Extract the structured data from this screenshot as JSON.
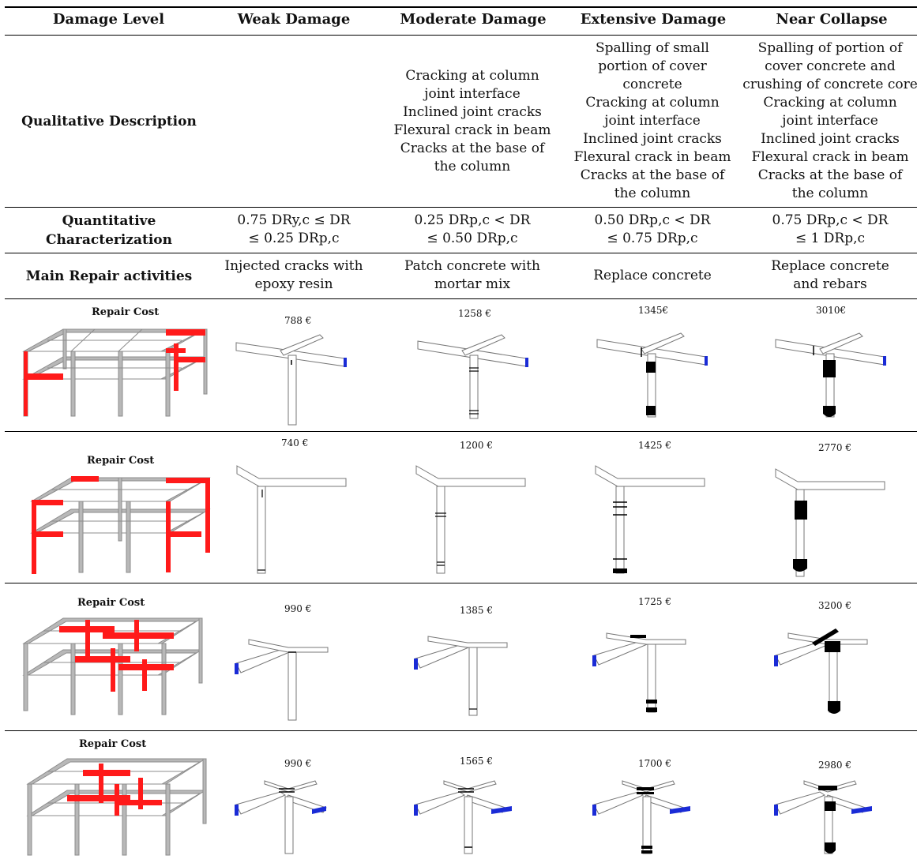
{
  "header": {
    "col0": "Damage Level",
    "col1": "Weak Damage",
    "col2": "Moderate Damage",
    "col3": "Extensive Damage",
    "col4": "Near Collapse"
  },
  "qualitative": {
    "label": "Qualitative Description",
    "weak": "",
    "moderate": [
      "Cracking at column",
      "joint interface",
      "Inclined joint cracks",
      "Flexural crack in beam",
      "Cracks at the base of",
      "the column"
    ],
    "extensive": [
      "Spalling of small",
      "portion of cover",
      "concrete",
      "Cracking at column",
      "joint interface",
      "Inclined joint cracks",
      "Flexural crack in beam",
      "Cracks at the base of",
      "the column"
    ],
    "near_collapse": [
      "Spalling of portion of",
      "cover concrete and",
      "crushing of concrete core",
      "Cracking at column",
      "joint interface",
      "Inclined joint cracks",
      "Flexural crack in beam",
      "Cracks at the base of",
      "the column"
    ]
  },
  "quantitative": {
    "label": [
      "Quantitative",
      "Characterization"
    ],
    "weak": [
      "0.75 DRy,c ≤ DR",
      "≤ 0.25 DRp,c"
    ],
    "moderate": [
      "0.25 DRp,c < DR",
      "≤ 0.50 DRp,c"
    ],
    "extensive": [
      "0.50 DRp,c < DR",
      "≤ 0.75 DRp,c"
    ],
    "near_collapse": [
      "0.75 DRp,c < DR",
      "≤ 1 DRp,c"
    ]
  },
  "repair": {
    "label": "Main Repair activities",
    "weak": [
      "Injected cracks with",
      "epoxy resin"
    ],
    "moderate": [
      "Patch concrete with",
      "mortar mix"
    ],
    "extensive": [
      "Replace concrete"
    ],
    "near_collapse": [
      "Replace concrete",
      "and rebars"
    ]
  },
  "cost_rows": [
    {
      "label": "Repair Cost",
      "costs": [
        "788 €",
        "1258 €",
        "1345€",
        "3010€"
      ]
    },
    {
      "label": "Repair Cost",
      "costs": [
        "740 €",
        "1200 €",
        "1425 €",
        "2770 €"
      ]
    },
    {
      "label": "Repair Cost",
      "costs": [
        "990 €",
        "1385 €",
        "1725 €",
        "3200 €"
      ]
    },
    {
      "label": "Repair Cost",
      "costs": [
        "990 €",
        "1565 €",
        "1700 €",
        "2980 €"
      ]
    }
  ],
  "colors": {
    "highlight": "#ff1a1a",
    "frame": "#a8a8a8",
    "section": "#1a2bd6",
    "crack": "#000000"
  }
}
